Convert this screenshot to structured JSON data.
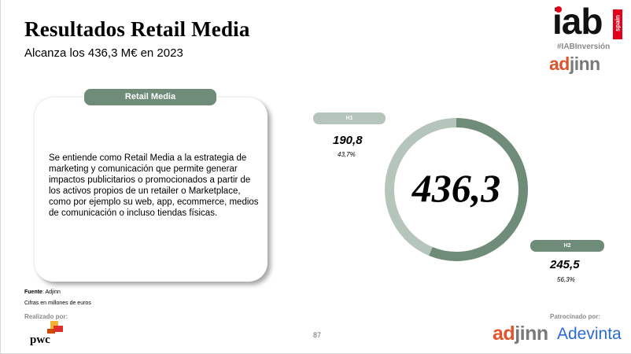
{
  "header": {
    "title": "Resultados Retail Media",
    "subtitle": "Alcanza los 436,3 M€ en 2023"
  },
  "logos": {
    "iab_text": "iab",
    "iab_region": "spain",
    "hashtag": "#IABInversión",
    "adjinn_prefix": "ad",
    "adjinn_suffix": "jinn",
    "pwc_text": "pwc",
    "adevinta": "Adevinta"
  },
  "card": {
    "tab_label": "Retail Media",
    "text": "Se entiende como Retail Media a la estrategia de marketing y comunicación que permite generar impactos publicitarios o promocionados a partir de los activos propios de un retailer o Marketplace, como por ejemplo su web, app, ecommerce, medios de comunicación o incluso tiendas físicas."
  },
  "footer": {
    "source_label": "Fuente",
    "source_value": ": Adjinn",
    "units": "Cifras en millones de euros",
    "made_by": "Realizado por:",
    "page_number": "87",
    "sponsored": "Patrocinado por:"
  },
  "colors": {
    "h1": "#b6c5bb",
    "h2": "#6e8c78",
    "accent_orange": "#e0542b",
    "iab_red": "#e2001a"
  },
  "chart_data": {
    "type": "pie",
    "donut": true,
    "total": "436,3",
    "slices": [
      {
        "name": "H1",
        "value": 190.8,
        "value_label": "190,8",
        "pct_label": "43,7%",
        "color": "#b6c5bb"
      },
      {
        "name": "H2",
        "value": 245.5,
        "value_label": "245,5",
        "pct_label": "56,3%",
        "color": "#6e8c78"
      }
    ]
  }
}
